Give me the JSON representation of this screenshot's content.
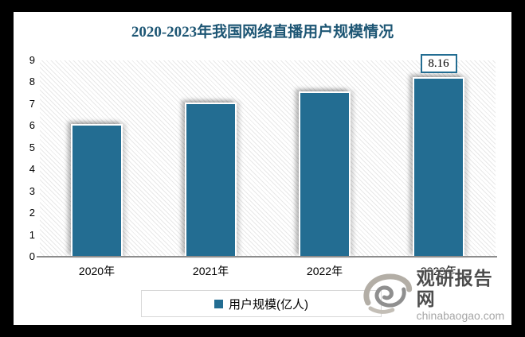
{
  "frame": {
    "border_color": "#000000",
    "canvas_background": "#ffffff"
  },
  "title": "2020-2023年我国网络直播用户规模情况",
  "title_color": "#1d5674",
  "chart_data": {
    "type": "bar",
    "title": "2020-2023年我国网络直播用户规模情况",
    "categories": [
      "2020年",
      "2021年",
      "2022年",
      "2023年"
    ],
    "series": [
      {
        "name": "用户规模(亿人)",
        "values": [
          6.0,
          7.0,
          7.5,
          8.16
        ]
      }
    ],
    "ylim": [
      0,
      9
    ],
    "yticks": [
      0,
      1,
      2,
      3,
      4,
      5,
      6,
      7,
      8,
      9
    ],
    "xlabel": "",
    "ylabel": "",
    "grid": "diagonal-hatch plot background, no gridlines",
    "legend_position": "bottom",
    "bar_color": "#236d92",
    "data_labels": [
      {
        "index": 3,
        "category": "2023年",
        "text": "8.16"
      }
    ]
  },
  "legend": {
    "label": "用户规模(亿人)",
    "swatch_color": "#236d92"
  },
  "watermark": {
    "logo": "swirl-logo",
    "site_name": "观研报告网",
    "site_domain": "chinabaogao.com"
  }
}
